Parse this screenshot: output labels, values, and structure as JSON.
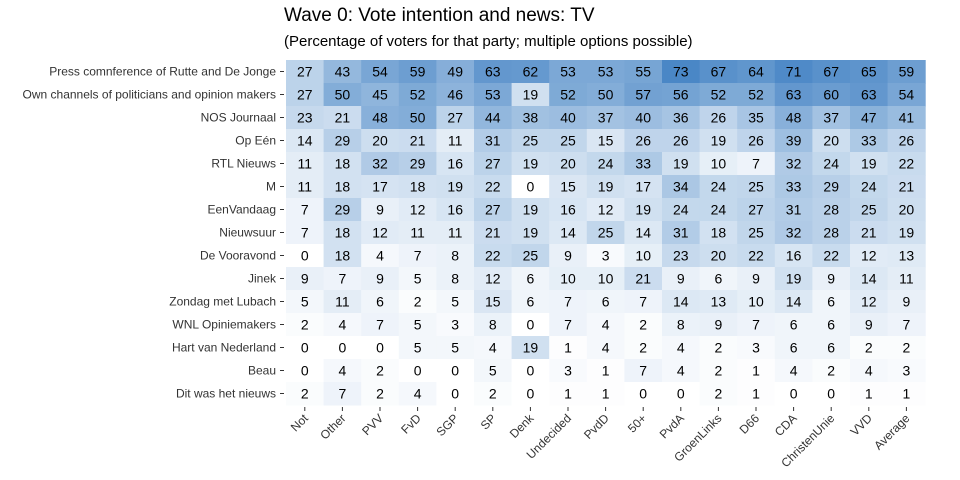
{
  "chart_data": {
    "type": "heatmap",
    "title": "Wave 0: Vote intention and news:  TV",
    "subtitle": "(Percentage of voters for that party; multiple options possible)",
    "columns": [
      "Not",
      "Other",
      "PVV",
      "FvD",
      "SGP",
      "SP",
      "Denk",
      "Undecided",
      "PvdD",
      "50+",
      "PvdA",
      "GroenLinks",
      "D66",
      "CDA",
      "ChristenUnie",
      "VVD",
      "Average"
    ],
    "rows": [
      {
        "label": "Press comnference of Rutte and De Jonge",
        "values": [
          27,
          43,
          54,
          59,
          49,
          63,
          62,
          53,
          53,
          55,
          73,
          67,
          64,
          71,
          67,
          65,
          59
        ]
      },
      {
        "label": "Own channels of politicians and opinion makers",
        "values": [
          27,
          50,
          45,
          52,
          46,
          53,
          19,
          52,
          50,
          57,
          56,
          52,
          52,
          63,
          60,
          63,
          54
        ]
      },
      {
        "label": "NOS Journaal",
        "values": [
          23,
          21,
          48,
          50,
          27,
          44,
          38,
          40,
          37,
          40,
          36,
          26,
          35,
          48,
          37,
          47,
          41
        ]
      },
      {
        "label": "Op Eén",
        "values": [
          14,
          29,
          20,
          21,
          11,
          31,
          25,
          25,
          15,
          26,
          26,
          19,
          26,
          39,
          20,
          33,
          26
        ]
      },
      {
        "label": "RTL Nieuws",
        "values": [
          11,
          18,
          32,
          29,
          16,
          27,
          19,
          20,
          24,
          33,
          19,
          10,
          7,
          32,
          24,
          19,
          22
        ]
      },
      {
        "label": "M",
        "values": [
          11,
          18,
          17,
          18,
          19,
          22,
          0,
          15,
          19,
          17,
          34,
          24,
          25,
          33,
          29,
          24,
          21
        ]
      },
      {
        "label": "EenVandaag",
        "values": [
          7,
          29,
          9,
          12,
          16,
          27,
          19,
          16,
          12,
          19,
          24,
          24,
          27,
          31,
          28,
          25,
          20
        ]
      },
      {
        "label": "Nieuwsuur",
        "values": [
          7,
          18,
          12,
          11,
          11,
          21,
          19,
          14,
          25,
          14,
          31,
          18,
          25,
          32,
          28,
          21,
          19
        ]
      },
      {
        "label": "De Vooravond",
        "values": [
          0,
          18,
          4,
          7,
          8,
          22,
          25,
          9,
          3,
          10,
          23,
          20,
          22,
          16,
          22,
          12,
          13
        ]
      },
      {
        "label": "Jinek",
        "values": [
          9,
          7,
          9,
          5,
          8,
          12,
          6,
          10,
          10,
          21,
          9,
          6,
          9,
          19,
          9,
          14,
          11
        ]
      },
      {
        "label": "Zondag met Lubach",
        "values": [
          5,
          11,
          6,
          2,
          5,
          15,
          6,
          7,
          6,
          7,
          14,
          13,
          10,
          14,
          6,
          12,
          9
        ]
      },
      {
        "label": "WNL Opiniemakers",
        "values": [
          2,
          4,
          7,
          5,
          3,
          8,
          0,
          7,
          4,
          2,
          8,
          9,
          7,
          6,
          6,
          9,
          7
        ]
      },
      {
        "label": "Hart van Nederland",
        "values": [
          0,
          0,
          0,
          5,
          5,
          4,
          19,
          1,
          4,
          2,
          4,
          2,
          3,
          6,
          6,
          2,
          2
        ]
      },
      {
        "label": "Beau",
        "values": [
          0,
          4,
          2,
          0,
          0,
          5,
          0,
          3,
          1,
          7,
          4,
          2,
          1,
          4,
          2,
          4,
          3
        ]
      },
      {
        "label": "Dit was het nieuws",
        "values": [
          2,
          7,
          2,
          4,
          0,
          2,
          0,
          1,
          1,
          0,
          0,
          2,
          1,
          0,
          0,
          1,
          1
        ]
      }
    ],
    "color_scale": {
      "low": "#ffffff",
      "high": "#4a87c6",
      "min": 0,
      "max": 73
    },
    "legend": "none"
  }
}
